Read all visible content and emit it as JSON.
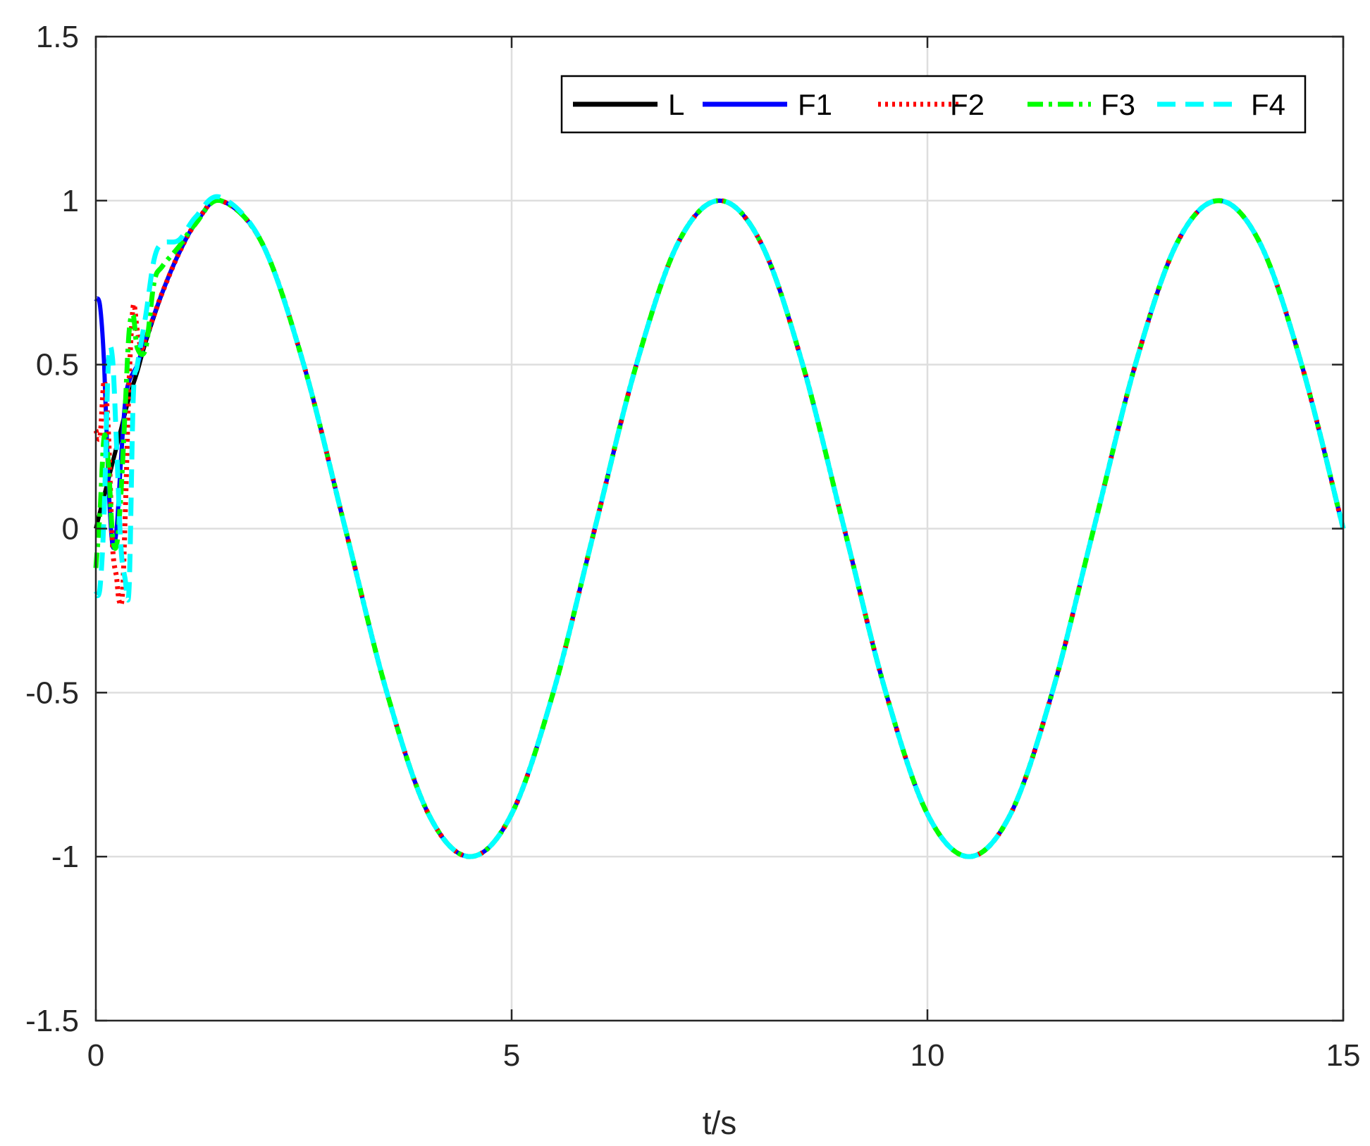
{
  "chart_data": {
    "type": "line",
    "title": "",
    "xlabel": "t/s",
    "ylabel": "",
    "xlim": [
      0,
      15
    ],
    "ylim": [
      -1.5,
      1.5
    ],
    "xticks": [
      0,
      5,
      10,
      15
    ],
    "xtick_labels": [
      "0",
      "5",
      "10",
      "15"
    ],
    "yticks": [
      -1.5,
      -1,
      -0.5,
      0,
      0.5,
      1,
      1.5
    ],
    "ytick_labels": [
      "-1.5",
      "-1",
      "-0.5",
      "0",
      "0.5",
      "1",
      "1.5"
    ],
    "grid": true,
    "legend_position": "top-right",
    "legend_orientation": "horizontal",
    "series": [
      {
        "name": "L",
        "color": "#000000",
        "style": "solid",
        "x": [
          0,
          0.1,
          0.2,
          0.3,
          0.4,
          0.5,
          0.6,
          0.8,
          1.0,
          1.2,
          1.5,
          2.0,
          2.5,
          3.0,
          3.5,
          4.0,
          4.5,
          5.0,
          5.5,
          6.0,
          6.5,
          7.0,
          7.5,
          8.0,
          8.5,
          9.0,
          9.5,
          10.0,
          10.5,
          11.0,
          11.5,
          12.0,
          12.5,
          13.0,
          13.5,
          14.0,
          14.5,
          15.0
        ],
        "y": [
          0,
          0.1,
          0.2,
          0.3,
          0.4,
          0.48,
          0.57,
          0.72,
          0.84,
          0.93,
          1.0,
          0.87,
          0.5,
          0,
          -0.5,
          -0.87,
          -1.0,
          -0.87,
          -0.5,
          0,
          0.5,
          0.87,
          1.0,
          0.87,
          0.5,
          0,
          -0.5,
          -0.87,
          -1.0,
          -0.87,
          -0.5,
          0,
          0.5,
          0.87,
          1.0,
          0.87,
          0.5,
          0
        ]
      },
      {
        "name": "F1",
        "color": "#0000ff",
        "style": "solid",
        "x": [
          0,
          0.05,
          0.1,
          0.15,
          0.2,
          0.25,
          0.3,
          0.35,
          0.4,
          0.5,
          0.6,
          0.8,
          1.0,
          1.2,
          1.5,
          2.0,
          2.5,
          3.0,
          3.5,
          4.0,
          4.5,
          5.0,
          5.5,
          6.0,
          6.5,
          7.0,
          7.5,
          8.0,
          8.5,
          9.0,
          9.5,
          10.0,
          10.5,
          11.0,
          11.5,
          12.0,
          12.5,
          13.0,
          13.5,
          14.0,
          14.5,
          15.0
        ],
        "y": [
          0.7,
          0.68,
          0.5,
          0.15,
          -0.05,
          0.0,
          0.2,
          0.38,
          0.45,
          0.5,
          0.58,
          0.72,
          0.84,
          0.93,
          1.0,
          0.87,
          0.5,
          0,
          -0.5,
          -0.87,
          -1.0,
          -0.87,
          -0.5,
          0,
          0.5,
          0.87,
          1.0,
          0.87,
          0.5,
          0,
          -0.5,
          -0.87,
          -1.0,
          -0.87,
          -0.5,
          0,
          0.5,
          0.87,
          1.0,
          0.87,
          0.5,
          0
        ]
      },
      {
        "name": "F2",
        "color": "#ff0000",
        "style": "dotted",
        "x": [
          0,
          0.05,
          0.1,
          0.15,
          0.2,
          0.25,
          0.28,
          0.32,
          0.36,
          0.4,
          0.45,
          0.5,
          0.55,
          0.6,
          0.7,
          0.8,
          1.0,
          1.2,
          1.5,
          2.0,
          2.5,
          3.0,
          3.5,
          4.0,
          4.5,
          5.0,
          5.5,
          6.0,
          6.5,
          7.0,
          7.5,
          8.0,
          8.5,
          9.0,
          9.5,
          10.0,
          10.5,
          11.0,
          11.5,
          12.0,
          12.5,
          13.0,
          13.5,
          14.0,
          14.5,
          15.0
        ],
        "y": [
          0.3,
          0.28,
          0.45,
          0.3,
          -0.05,
          -0.15,
          -0.22,
          -0.2,
          0.1,
          0.45,
          0.68,
          0.6,
          0.55,
          0.58,
          0.65,
          0.72,
          0.84,
          0.93,
          1.0,
          0.87,
          0.5,
          0,
          -0.5,
          -0.87,
          -1.0,
          -0.87,
          -0.5,
          0,
          0.5,
          0.87,
          1.0,
          0.87,
          0.5,
          0,
          -0.5,
          -0.87,
          -1.0,
          -0.87,
          -0.5,
          0,
          0.5,
          0.87,
          1.0,
          0.87,
          0.5,
          0
        ]
      },
      {
        "name": "F3",
        "color": "#00ff00",
        "style": "dashdot",
        "x": [
          0,
          0.05,
          0.1,
          0.15,
          0.2,
          0.25,
          0.3,
          0.35,
          0.4,
          0.45,
          0.5,
          0.6,
          0.7,
          0.8,
          1.0,
          1.2,
          1.5,
          2.0,
          2.5,
          3.0,
          3.5,
          4.0,
          4.5,
          5.0,
          5.5,
          6.0,
          6.5,
          7.0,
          7.5,
          8.0,
          8.5,
          9.0,
          9.5,
          10.0,
          10.5,
          11.0,
          11.5,
          12.0,
          12.5,
          13.0,
          13.5,
          14.0,
          14.5,
          15.0
        ],
        "y": [
          -0.12,
          0.05,
          0.28,
          0.2,
          -0.02,
          -0.05,
          0.1,
          0.35,
          0.6,
          0.65,
          0.55,
          0.55,
          0.75,
          0.8,
          0.86,
          0.93,
          1.0,
          0.87,
          0.5,
          0,
          -0.5,
          -0.87,
          -1.0,
          -0.87,
          -0.5,
          0,
          0.5,
          0.87,
          1.0,
          0.87,
          0.5,
          0,
          -0.5,
          -0.87,
          -1.0,
          -0.87,
          -0.5,
          0,
          0.5,
          0.87,
          1.0,
          0.87,
          0.5,
          0
        ]
      },
      {
        "name": "F4",
        "color": "#00ffff",
        "style": "dashed",
        "x": [
          0,
          0.05,
          0.1,
          0.15,
          0.2,
          0.25,
          0.3,
          0.35,
          0.4,
          0.45,
          0.5,
          0.6,
          0.7,
          0.8,
          1.0,
          1.2,
          1.5,
          2.0,
          2.5,
          3.0,
          3.5,
          4.0,
          4.5,
          5.0,
          5.5,
          6.0,
          6.5,
          7.0,
          7.5,
          8.0,
          8.5,
          9.0,
          9.5,
          10.0,
          10.5,
          11.0,
          11.5,
          12.0,
          12.5,
          13.0,
          13.5,
          14.0,
          14.5,
          15.0
        ],
        "y": [
          -0.2,
          -0.18,
          0.05,
          0.5,
          0.52,
          0.25,
          -0.05,
          -0.15,
          -0.18,
          0.4,
          0.5,
          0.65,
          0.82,
          0.87,
          0.88,
          0.95,
          1.01,
          0.87,
          0.5,
          0,
          -0.5,
          -0.87,
          -1.0,
          -0.87,
          -0.5,
          0,
          0.5,
          0.87,
          1.0,
          0.87,
          0.5,
          0,
          -0.5,
          -0.87,
          -1.0,
          -0.87,
          -0.5,
          0,
          0.5,
          0.87,
          1.0,
          0.87,
          0.5,
          0
        ]
      }
    ]
  }
}
